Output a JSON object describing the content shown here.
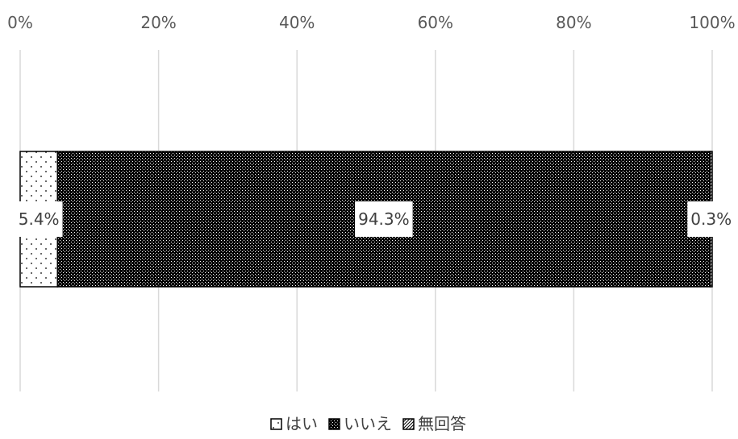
{
  "chart_data": {
    "type": "bar",
    "orientation": "horizontal",
    "stacked": "percent",
    "categories": [
      ""
    ],
    "series": [
      {
        "name": "はい",
        "values": [
          5.4
        ],
        "label": "5.4%",
        "pattern": "dots"
      },
      {
        "name": "いいえ",
        "values": [
          94.3
        ],
        "label": "94.3%",
        "pattern": "dense-checker"
      },
      {
        "name": "無回答",
        "values": [
          0.3
        ],
        "label": "0.3%",
        "pattern": "diagonal"
      }
    ],
    "xlim": [
      0,
      100
    ],
    "x_ticks": [
      "0%",
      "20%",
      "40%",
      "60%",
      "80%",
      "100%"
    ],
    "grid": "vertical",
    "legend_position": "bottom",
    "colors": {
      "grid": "#d9d9d9",
      "bar_stroke": "#000000",
      "pattern_ink": "#000000",
      "label_bg": "#ffffff"
    }
  }
}
